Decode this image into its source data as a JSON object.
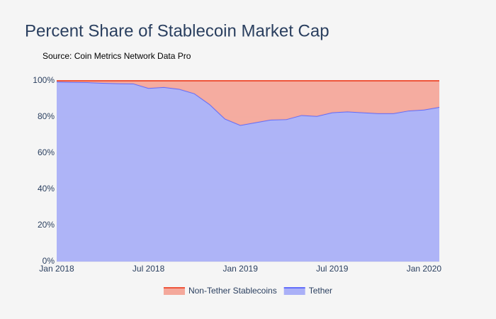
{
  "chart_data": {
    "type": "stacked_area",
    "title": "Percent Share of Stablecoin Market Cap",
    "subtitle": "Source: Coin Metrics Network Data Pro",
    "x": [
      "2018-01",
      "2018-02",
      "2018-03",
      "2018-04",
      "2018-05",
      "2018-06",
      "2018-07",
      "2018-08",
      "2018-09",
      "2018-10",
      "2018-11",
      "2018-12",
      "2019-01",
      "2019-02",
      "2019-03",
      "2019-04",
      "2019-05",
      "2019-06",
      "2019-07",
      "2019-08",
      "2019-09",
      "2019-10",
      "2019-11",
      "2019-12",
      "2020-01",
      "2020-02"
    ],
    "series": [
      {
        "name": "Non-Tether Stablecoins",
        "color": "#ef553b",
        "fill": "#f4a89b",
        "values": [
          0.5,
          0.7,
          0.8,
          1.2,
          1.4,
          1.5,
          4,
          3.5,
          4.5,
          7,
          13,
          21,
          24.5,
          23,
          21.5,
          21.3,
          19,
          19.5,
          17.5,
          17,
          17.5,
          18,
          18,
          16.5,
          16,
          14.5
        ]
      },
      {
        "name": "Tether",
        "color": "#636efa",
        "fill": "#aab0f7",
        "values": [
          99.5,
          99.3,
          99.2,
          98.8,
          98.6,
          98.5,
          96,
          96.5,
          95.5,
          93,
          87,
          79,
          75.5,
          77,
          78.5,
          78.7,
          81,
          80.5,
          82.5,
          83,
          82.5,
          82,
          82,
          83.5,
          84,
          85.5
        ]
      }
    ],
    "xlim": [
      "2018-01",
      "2020-02"
    ],
    "xticks": [
      {
        "value": "2018-01",
        "label": "Jan 2018"
      },
      {
        "value": "2018-07",
        "label": "Jul 2018"
      },
      {
        "value": "2019-01",
        "label": "Jan 2019"
      },
      {
        "value": "2019-07",
        "label": "Jul 2019"
      },
      {
        "value": "2020-01",
        "label": "Jan 2020"
      }
    ],
    "ylim": [
      0,
      100
    ],
    "yticks": [
      {
        "value": 0,
        "label": "0%"
      },
      {
        "value": 20,
        "label": "20%"
      },
      {
        "value": 40,
        "label": "40%"
      },
      {
        "value": 60,
        "label": "60%"
      },
      {
        "value": 80,
        "label": "80%"
      },
      {
        "value": 100,
        "label": "100%"
      }
    ],
    "grid": true,
    "legend": "bottom"
  }
}
